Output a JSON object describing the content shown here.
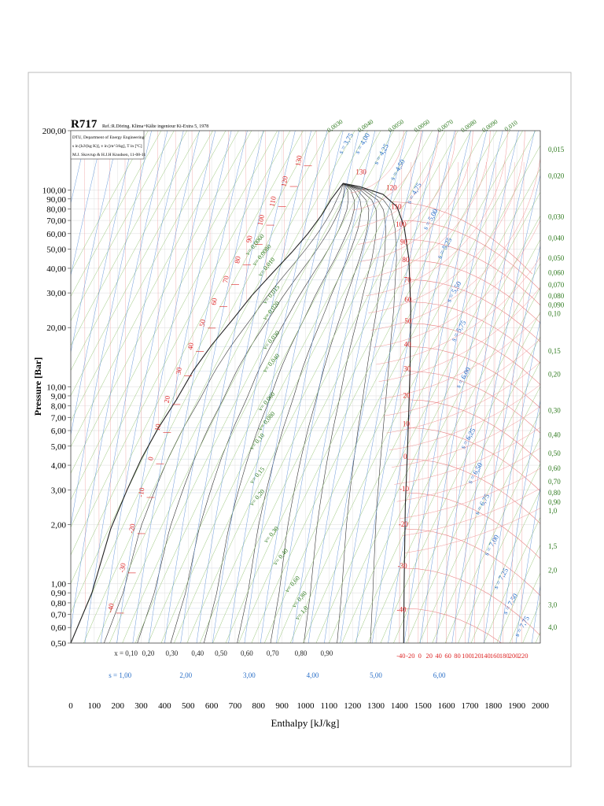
{
  "header": {
    "title": "R717",
    "ref": "Ref.:R.Döring. Klima+Kälte ingeniour Ki-Extra 5, 1978",
    "info_lines": [
      "DTU, Department of Energy Engineering",
      "s in [kJ/(kg K)], v in [m^3/kg], T in [ºC]",
      "M.J. Skovrup & H.J.H Knudsen, 11-08-11"
    ]
  },
  "chart_data": {
    "type": "line",
    "title": "",
    "xlabel": "Enthalpy [kJ/kg]",
    "ylabel": "Pressure [Bar]",
    "xlim": [
      0,
      2000
    ],
    "ylim": [
      0.5,
      200
    ],
    "y_scale": "log",
    "grid": true,
    "x_ticks": [
      "0",
      "100",
      "200",
      "300",
      "400",
      "500",
      "600",
      "700",
      "800",
      "900",
      "1000",
      "1100",
      "1200",
      "1300",
      "1400",
      "1500",
      "1600",
      "1700",
      "1800",
      "1900",
      "2000"
    ],
    "y_ticks": [
      {
        "v": 200,
        "l": "200,00"
      },
      {
        "v": 100,
        "l": "100,00"
      },
      {
        "v": 90,
        "l": "90,00"
      },
      {
        "v": 80,
        "l": "80,00"
      },
      {
        "v": 70,
        "l": "70,00"
      },
      {
        "v": 60,
        "l": "60,00"
      },
      {
        "v": 50,
        "l": "50,00"
      },
      {
        "v": 40,
        "l": "40,00"
      },
      {
        "v": 30,
        "l": "30,00"
      },
      {
        "v": 20,
        "l": "20,00"
      },
      {
        "v": 10,
        "l": "10,00"
      },
      {
        "v": 9,
        "l": "9,00"
      },
      {
        "v": 8,
        "l": "8,00"
      },
      {
        "v": 7,
        "l": "7,00"
      },
      {
        "v": 6,
        "l": "6,00"
      },
      {
        "v": 5,
        "l": "5,00"
      },
      {
        "v": 4,
        "l": "4,00"
      },
      {
        "v": 3,
        "l": "3,00"
      },
      {
        "v": 2,
        "l": "2,00"
      },
      {
        "v": 1,
        "l": "1,00"
      },
      {
        "v": 0.9,
        "l": "0,90"
      },
      {
        "v": 0.8,
        "l": "0,80"
      },
      {
        "v": 0.7,
        "l": "0,70"
      },
      {
        "v": 0.6,
        "l": "0,60"
      },
      {
        "v": 0.5,
        "l": "0,50"
      }
    ],
    "saturation_liquid": [
      [
        0,
        0.5
      ],
      [
        90,
        0.9
      ],
      [
        170,
        1.9
      ],
      [
        240,
        3.0
      ],
      [
        300,
        4.3
      ],
      [
        370,
        6.1
      ],
      [
        450,
        8.6
      ],
      [
        520,
        12.0
      ],
      [
        600,
        16.3
      ],
      [
        690,
        22.0
      ],
      [
        770,
        29.0
      ],
      [
        860,
        38.0
      ],
      [
        940,
        48.0
      ],
      [
        1010,
        60.0
      ],
      [
        1070,
        75.0
      ],
      [
        1110,
        90.0
      ],
      [
        1160,
        108.0
      ]
    ],
    "saturation_vapour": [
      [
        1160,
        108.0
      ],
      [
        1230,
        104.0
      ],
      [
        1330,
        95.0
      ],
      [
        1390,
        82.0
      ],
      [
        1420,
        65.0
      ],
      [
        1440,
        45.0
      ],
      [
        1448,
        25.0
      ],
      [
        1445,
        12.0
      ],
      [
        1435,
        5.0
      ],
      [
        1425,
        2.5
      ],
      [
        1420,
        1.0
      ],
      [
        1418,
        0.5
      ]
    ],
    "temperature_labels_liquid": [
      {
        "t": "-40",
        "h": 200,
        "p": 0.75
      },
      {
        "t": "-30",
        "h": 250,
        "p": 1.2
      },
      {
        "t": "-20",
        "h": 290,
        "p": 1.9
      },
      {
        "t": "-10",
        "h": 330,
        "p": 2.9
      },
      {
        "t": "0",
        "h": 370,
        "p": 4.3
      },
      {
        "t": "10",
        "h": 400,
        "p": 6.2
      },
      {
        "t": "20",
        "h": 440,
        "p": 8.6
      },
      {
        "t": "30",
        "h": 490,
        "p": 12.0
      },
      {
        "t": "40",
        "h": 540,
        "p": 16.0
      },
      {
        "t": "50",
        "h": 590,
        "p": 21.0
      },
      {
        "t": "60",
        "h": 640,
        "p": 27.0
      },
      {
        "t": "70",
        "h": 690,
        "p": 35.0
      },
      {
        "t": "80",
        "h": 740,
        "p": 44.0
      },
      {
        "t": "90",
        "h": 790,
        "p": 56.0
      },
      {
        "t": "100",
        "h": 840,
        "p": 70.0
      },
      {
        "t": "110",
        "h": 890,
        "p": 87.0
      },
      {
        "t": "120",
        "h": 940,
        "p": 110.0
      },
      {
        "t": "130",
        "h": 1000,
        "p": 140.0
      }
    ],
    "temperature_labels_vapour": [
      {
        "t": "130",
        "h": 1250,
        "p": 120.0
      },
      {
        "t": "120",
        "h": 1380,
        "p": 100.0
      },
      {
        "t": "110",
        "h": 1400,
        "p": 80.0
      },
      {
        "t": "100",
        "h": 1420,
        "p": 65.0
      },
      {
        "t": "90",
        "h": 1432,
        "p": 53.0
      },
      {
        "t": "80",
        "h": 1440,
        "p": 43.0
      },
      {
        "t": "70",
        "h": 1448,
        "p": 34.0
      },
      {
        "t": "60",
        "h": 1450,
        "p": 27.0
      },
      {
        "t": "50",
        "h": 1450,
        "p": 21.0
      },
      {
        "t": "40",
        "h": 1448,
        "p": 16.0
      },
      {
        "t": "30",
        "h": 1446,
        "p": 12.0
      },
      {
        "t": "20",
        "h": 1444,
        "p": 8.8
      },
      {
        "t": "10",
        "h": 1442,
        "p": 6.3
      },
      {
        "t": "0",
        "h": 1438,
        "p": 4.3
      },
      {
        "t": "-10",
        "h": 1434,
        "p": 2.95
      },
      {
        "t": "-20",
        "h": 1430,
        "p": 1.95
      },
      {
        "t": "-30",
        "h": 1426,
        "p": 1.2
      },
      {
        "t": "-40",
        "h": 1422,
        "p": 0.72
      }
    ],
    "bottom_temps": [
      "-40",
      "-20",
      "0",
      "20",
      "40",
      "60",
      "80",
      "100",
      "120",
      "140",
      "160",
      "180",
      "200",
      "220"
    ],
    "quality_labels": [
      {
        "t": "x = 0,10",
        "h": 235
      },
      {
        "t": "0,20",
        "h": 330
      },
      {
        "t": "0,30",
        "h": 430
      },
      {
        "t": "0,40",
        "h": 540
      },
      {
        "t": "0,50",
        "h": 640
      },
      {
        "t": "0,60",
        "h": 750
      },
      {
        "t": "0,70",
        "h": 860
      },
      {
        "t": "0,80",
        "h": 980
      },
      {
        "t": "0,90",
        "h": 1090
      }
    ],
    "entropy_bottom": [
      {
        "t": "s = 1,00",
        "h": 210
      },
      {
        "t": "2,00",
        "h": 490
      },
      {
        "t": "3,00",
        "h": 760
      },
      {
        "t": "4,00",
        "h": 1030
      },
      {
        "t": "5,00",
        "h": 1300
      },
      {
        "t": "6,00",
        "h": 1570
      }
    ],
    "entropy_right": [
      {
        "t": "s = 3,75",
        "h": 1180,
        "p": 170.0
      },
      {
        "t": "s = 4,00",
        "h": 1250,
        "p": 170.0
      },
      {
        "t": "s = 4,25",
        "h": 1330,
        "p": 150.0
      },
      {
        "t": "s = 4,50",
        "h": 1400,
        "p": 125.0
      },
      {
        "t": "s = 4,75",
        "h": 1470,
        "p": 95.0
      },
      {
        "t": "s = 5,00",
        "h": 1540,
        "p": 70.0
      },
      {
        "t": "s = 5,25",
        "h": 1600,
        "p": 50.0
      },
      {
        "t": "s = 5,50",
        "h": 1640,
        "p": 30.0
      },
      {
        "t": "s = 5,75",
        "h": 1660,
        "p": 19.0
      },
      {
        "t": "s = 6,00",
        "h": 1680,
        "p": 11.0
      },
      {
        "t": "s = 6,25",
        "h": 1700,
        "p": 5.4
      },
      {
        "t": "s = 6,50",
        "h": 1730,
        "p": 3.6
      },
      {
        "t": "s = 6,75",
        "h": 1760,
        "p": 2.5
      },
      {
        "t": "s = 7,00",
        "h": 1800,
        "p": 1.55
      },
      {
        "t": "s = 7,25",
        "h": 1840,
        "p": 1.05
      },
      {
        "t": "s = 7,50",
        "h": 1880,
        "p": 0.78
      },
      {
        "t": "s = 7,75",
        "h": 1930,
        "p": 0.6
      }
    ],
    "volume_labels_inside": [
      {
        "t": "v= 0,0060",
        "h": 790,
        "p": 52
      },
      {
        "t": "v= 0,0080",
        "h": 820,
        "p": 46
      },
      {
        "t": "v= 0,010",
        "h": 840,
        "p": 40
      },
      {
        "t": "v= 0,015",
        "h": 860,
        "p": 29
      },
      {
        "t": "v= 0,020",
        "h": 860,
        "p": 24
      },
      {
        "t": "v= 0,030",
        "h": 860,
        "p": 17
      },
      {
        "t": "v= 0,040",
        "h": 860,
        "p": 13
      },
      {
        "t": "v= 0,060",
        "h": 840,
        "p": 8.3
      },
      {
        "t": "v= 0,080",
        "h": 840,
        "p": 6.6
      },
      {
        "t": "v= 0,10",
        "h": 800,
        "p": 5.2
      },
      {
        "t": "v= 0,15",
        "h": 800,
        "p": 3.5
      },
      {
        "t": "v= 0,20",
        "h": 800,
        "p": 2.7
      },
      {
        "t": "v= 0,30",
        "h": 860,
        "p": 1.75
      },
      {
        "t": "v= 0,40",
        "h": 900,
        "p": 1.35
      },
      {
        "t": "v= 0,60",
        "h": 950,
        "p": 0.98
      },
      {
        "t": "v= 0,80",
        "h": 980,
        "p": 0.82
      },
      {
        "t": "v= 1,0",
        "h": 990,
        "p": 0.7
      }
    ],
    "volume_labels_top": [
      {
        "t": "0,0030",
        "h": 1130
      },
      {
        "t": "0,0040",
        "h": 1260
      },
      {
        "t": "0,0050",
        "h": 1390
      },
      {
        "t": "0,0060",
        "h": 1500
      },
      {
        "t": "0,0070",
        "h": 1600
      },
      {
        "t": "0,0080",
        "h": 1700
      },
      {
        "t": "0,0090",
        "h": 1790
      },
      {
        "t": "0,010",
        "h": 1880
      }
    ],
    "volume_labels_right": [
      {
        "t": "0,015",
        "p": 160
      },
      {
        "t": "0,020",
        "p": 118
      },
      {
        "t": "0,030",
        "p": 73
      },
      {
        "t": "0,040",
        "p": 57
      },
      {
        "t": "0,050",
        "p": 45
      },
      {
        "t": "0,060",
        "p": 38
      },
      {
        "t": "0,070",
        "p": 33
      },
      {
        "t": "0,080",
        "p": 29
      },
      {
        "t": "0,090",
        "p": 26
      },
      {
        "t": "0,10",
        "p": 23.5
      },
      {
        "t": "0,15",
        "p": 15.2
      },
      {
        "t": "0,20",
        "p": 11.6
      },
      {
        "t": "0,30",
        "p": 7.6
      },
      {
        "t": "0,40",
        "p": 5.7
      },
      {
        "t": "0,50",
        "p": 4.6
      },
      {
        "t": "0,60",
        "p": 3.85
      },
      {
        "t": "0,70",
        "p": 3.3
      },
      {
        "t": "0,80",
        "p": 2.9
      },
      {
        "t": "0,90",
        "p": 2.6
      },
      {
        "t": "1,0",
        "p": 2.35
      },
      {
        "t": "1,5",
        "p": 1.55
      },
      {
        "t": "2,0",
        "p": 1.17
      },
      {
        "t": "3,0",
        "p": 0.78
      },
      {
        "t": "4,0",
        "p": 0.6
      }
    ]
  }
}
